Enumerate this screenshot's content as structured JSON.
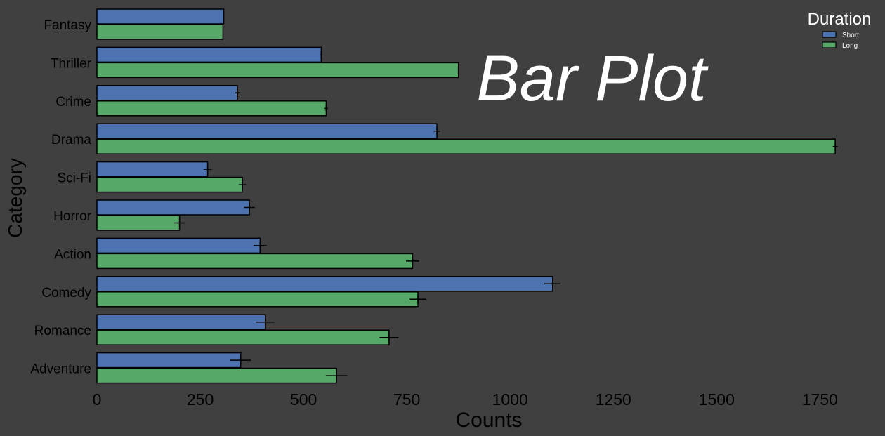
{
  "chart_data": {
    "type": "bar",
    "orientation": "horizontal",
    "title": "Bar Plot",
    "xlabel": "Counts",
    "ylabel": "Category",
    "xlim": [
      0,
      1800
    ],
    "xticks": [
      0,
      250,
      500,
      750,
      1000,
      1250,
      1500,
      1750
    ],
    "xtick_labels": [
      "0",
      "250",
      "500",
      "750",
      "1000",
      "1250",
      "1500",
      "1750"
    ],
    "categories": [
      "Fantasy",
      "Thriller",
      "Crime",
      "Drama",
      "Sci-Fi",
      "Horror",
      "Action",
      "Comedy",
      "Romance",
      "Adventure"
    ],
    "legend_title": "Duration",
    "legend_position": "top-right",
    "grid": false,
    "background_color": "#404040",
    "series": [
      {
        "name": "Short",
        "color": "#4c72b0",
        "values": [
          307,
          543,
          340,
          823,
          268,
          369,
          395,
          1103,
          408,
          348
        ],
        "errors": [
          0,
          2,
          5,
          8,
          10,
          13,
          16,
          20,
          23,
          25
        ]
      },
      {
        "name": "Long",
        "color": "#55a868",
        "values": [
          305,
          875,
          555,
          1787,
          352,
          200,
          764,
          777,
          707,
          580
        ],
        "errors": [
          0,
          1,
          4,
          6,
          9,
          13,
          16,
          20,
          23,
          26
        ]
      }
    ]
  }
}
